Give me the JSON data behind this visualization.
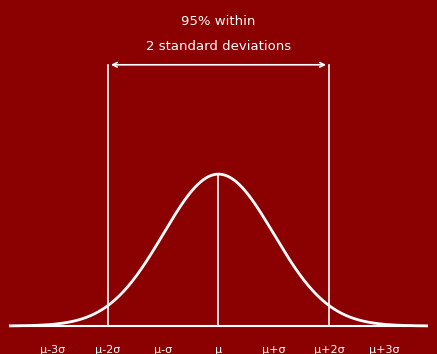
{
  "background_color": "#8B0000",
  "curve_color": "#FFFFFF",
  "line_color": "#FFFFFF",
  "text_color": "#FFFFFF",
  "mean": 0,
  "std": 1,
  "x_min": -3.8,
  "x_max": 3.8,
  "annotation_text_line1": "95% within",
  "annotation_text_line2": "2 standard deviations",
  "annotation_fontsize": 9.5,
  "tick_labels": [
    "μ-3σ",
    "μ-2σ",
    "μ-σ",
    "μ",
    "μ+σ",
    "μ+2σ",
    "μ+3σ"
  ],
  "tick_positions": [
    -3,
    -2,
    -1,
    0,
    1,
    2,
    3
  ],
  "curve_linewidth": 2.0,
  "vline_linewidth": 1.2,
  "bracket_linewidth": 1.2,
  "baseline_linewidth": 1.5
}
